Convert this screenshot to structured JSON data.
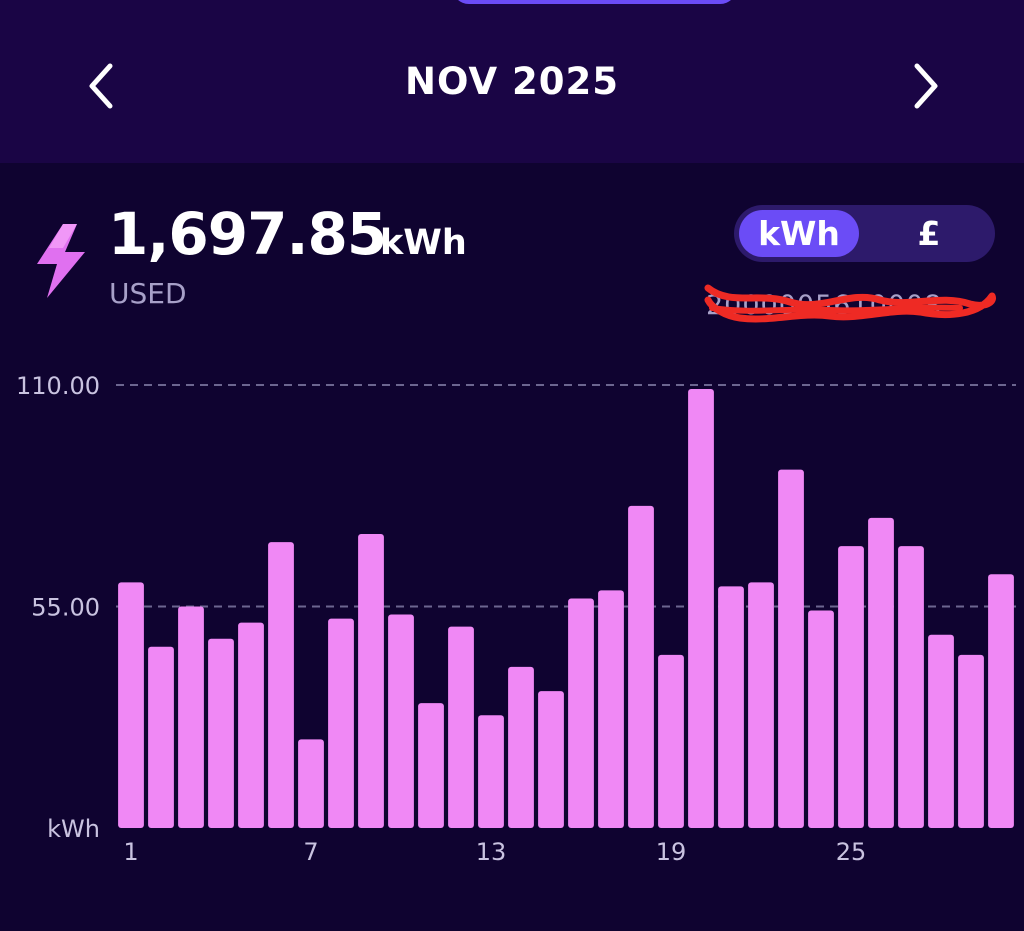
{
  "header": {
    "month": "NOV 2025"
  },
  "icons": {
    "prev": "chevron-left-icon",
    "next": "chevron-right-icon",
    "usage": "lightning-bolt-icon"
  },
  "usage": {
    "value": "1,697.85",
    "unit": "kWh",
    "caption": "USED"
  },
  "toggle": {
    "options": [
      "kWh",
      "£"
    ],
    "selected": "kWh"
  },
  "colors": {
    "bar": "#f088f5",
    "accent": "#6b4cf6",
    "background": "#0f0330",
    "header": "#1a0545"
  },
  "chart_data": {
    "type": "bar",
    "categories": [
      "1",
      "2",
      "3",
      "4",
      "5",
      "6",
      "7",
      "8",
      "9",
      "10",
      "11",
      "12",
      "13",
      "14",
      "15",
      "16",
      "17",
      "18",
      "19",
      "20",
      "21",
      "22",
      "23",
      "24",
      "25",
      "26",
      "27",
      "28",
      "29",
      "30"
    ],
    "values": [
      61,
      45,
      55,
      47,
      51,
      71,
      22,
      52,
      73,
      53,
      31,
      50,
      28,
      40,
      34,
      57,
      59,
      80,
      43,
      109,
      60,
      61,
      89,
      54,
      70,
      77,
      70,
      48,
      43,
      63
    ],
    "x_tick_labels": [
      "1",
      "7",
      "13",
      "19",
      "25"
    ],
    "y_tick_labels": [
      "110.00",
      "55.00"
    ],
    "y_ticks": [
      110,
      55
    ],
    "ylabel": "kWh",
    "ylim": [
      0,
      110
    ],
    "grid": "dashed horizontal"
  }
}
